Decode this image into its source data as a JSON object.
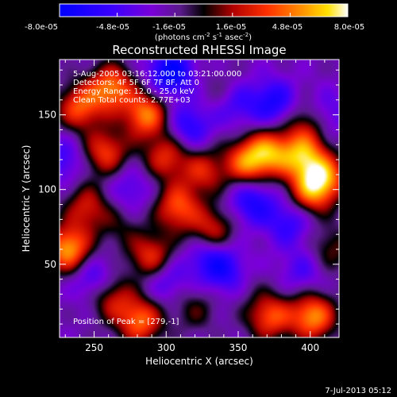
{
  "colorbar": {
    "tick_labels": [
      "-8.0e-05",
      "-4.8e-05",
      "-1.6e-05",
      "1.6e-05",
      "4.8e-05",
      "8.0e-05"
    ],
    "range": [
      -8e-05,
      8e-05
    ],
    "units_prefix": "(photons cm",
    "units_exp1": "-2",
    "units_mid": " s",
    "units_exp2": "-1",
    "units_mid2": " asec",
    "units_exp3": "-2",
    "units_suffix": ")",
    "colormap": "blue-purple-black-red-orange-yellow-white"
  },
  "chart_data": {
    "type": "heatmap",
    "title": "Reconstructed RHESSI Image",
    "xlabel": "Heliocentric X (arcsec)",
    "ylabel": "Heliocentric Y (arcsec)",
    "xlim": [
      226,
      420
    ],
    "ylim": [
      1,
      187
    ],
    "xticks": [
      250,
      300,
      350,
      400
    ],
    "yticks": [
      50,
      100,
      150
    ],
    "zlim": [
      -8e-05,
      8e-05
    ],
    "annotations": [
      "5-Aug-2005 03:16:12.000 to 03:21:00.000",
      "Detectors: 4F 5F 6F 7F 8F, Att 0",
      "Energy Range: 12.0 - 25.0 keV",
      "Clean    Total counts: 2.77E+03"
    ],
    "peak_label": "Position of Peak = [279,-1]",
    "blobs": [
      {
        "x": 240,
        "y": 155,
        "value": 6e-05
      },
      {
        "x": 262,
        "y": 168,
        "value": 7e-05
      },
      {
        "x": 286,
        "y": 150,
        "value": 7e-05
      },
      {
        "x": 258,
        "y": 125,
        "value": 5.5e-05
      },
      {
        "x": 300,
        "y": 122,
        "value": 5e-05
      },
      {
        "x": 232,
        "y": 60,
        "value": 8e-05
      },
      {
        "x": 245,
        "y": 88,
        "value": 4.5e-05
      },
      {
        "x": 268,
        "y": 75,
        "value": 2e-05
      },
      {
        "x": 290,
        "y": 55,
        "value": 5.5e-05
      },
      {
        "x": 308,
        "y": 88,
        "value": 6e-05
      },
      {
        "x": 332,
        "y": 72,
        "value": 5e-05
      },
      {
        "x": 326,
        "y": 112,
        "value": 4.5e-05
      },
      {
        "x": 356,
        "y": 118,
        "value": 6.5e-05
      },
      {
        "x": 372,
        "y": 125,
        "value": 6.5e-05
      },
      {
        "x": 395,
        "y": 122,
        "value": 7e-05
      },
      {
        "x": 410,
        "y": 108,
        "value": 6.5e-05
      },
      {
        "x": 400,
        "y": 98,
        "value": 5.5e-05
      },
      {
        "x": 398,
        "y": 145,
        "value": 4e-05
      },
      {
        "x": 348,
        "y": 40,
        "value": 5e-05
      },
      {
        "x": 372,
        "y": 15,
        "value": 6e-05
      },
      {
        "x": 402,
        "y": 15,
        "value": 7.5e-05
      },
      {
        "x": 282,
        "y": 12,
        "value": 6.5e-05
      },
      {
        "x": 262,
        "y": 28,
        "value": 4.5e-05
      },
      {
        "x": 320,
        "y": 20,
        "value": 2.5e-05
      },
      {
        "x": 415,
        "y": 60,
        "value": 3e-05
      },
      {
        "x": 340,
        "y": 165,
        "value": 2e-05
      },
      {
        "x": 345,
        "y": 42,
        "value": -7.5e-05
      },
      {
        "x": 303,
        "y": 178,
        "value": -6e-05
      },
      {
        "x": 316,
        "y": 142,
        "value": -4e-05
      },
      {
        "x": 348,
        "y": 158,
        "value": -3.5e-05
      },
      {
        "x": 375,
        "y": 158,
        "value": -4.5e-05
      },
      {
        "x": 410,
        "y": 150,
        "value": -3e-05
      },
      {
        "x": 360,
        "y": 92,
        "value": -4.5e-05
      },
      {
        "x": 385,
        "y": 78,
        "value": -3.5e-05
      },
      {
        "x": 228,
        "y": 120,
        "value": -3e-05
      },
      {
        "x": 250,
        "y": 40,
        "value": -3.5e-05
      },
      {
        "x": 275,
        "y": 100,
        "value": -2.5e-05
      },
      {
        "x": 300,
        "y": 40,
        "value": -3e-05
      },
      {
        "x": 395,
        "y": 45,
        "value": -2.5e-05
      },
      {
        "x": 330,
        "y": 55,
        "value": -4e-05
      }
    ]
  },
  "footer": {
    "timestamp": "7-Jul-2013 05:12"
  }
}
